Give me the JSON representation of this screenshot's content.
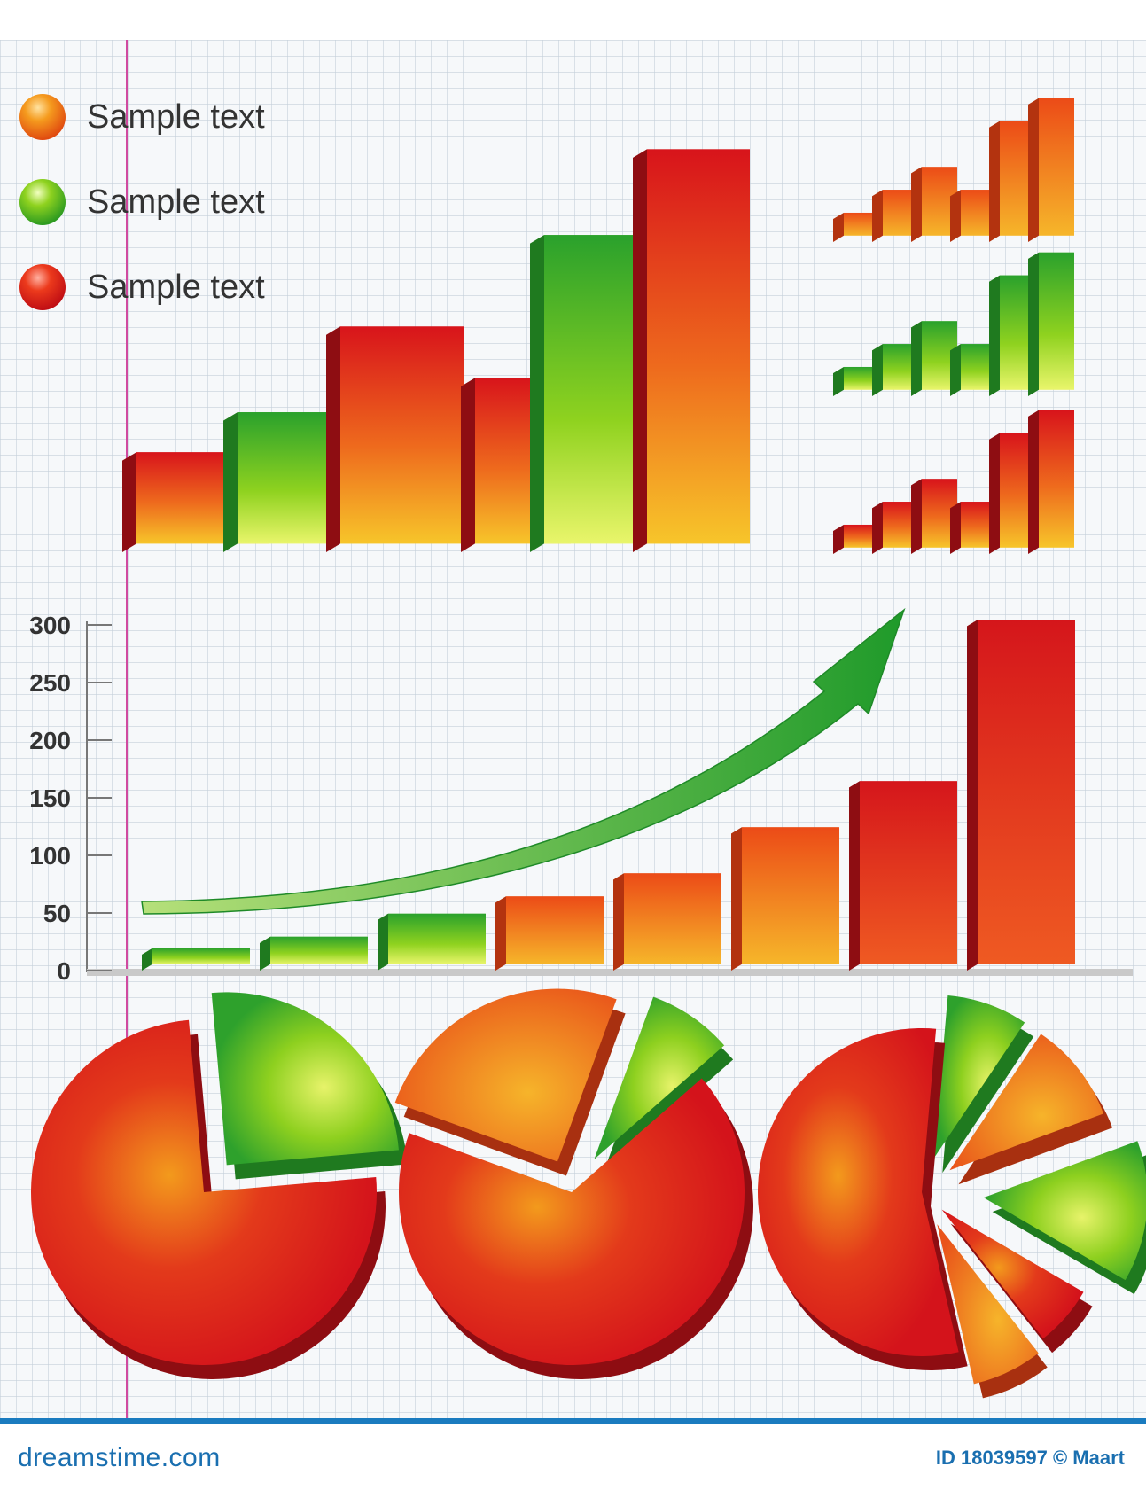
{
  "legend": {
    "items": [
      {
        "label": "Sample text",
        "color": "#f07a10"
      },
      {
        "label": "Sample text",
        "color": "#6cc318"
      },
      {
        "label": "Sample text",
        "color": "#e21b17"
      }
    ]
  },
  "colors": {
    "red": "#d5161b",
    "orange": "#f39a1c",
    "green": "#57b82a",
    "grid": "#b9c6d3",
    "margin_line": "#d04aa0"
  },
  "chart_data": [
    {
      "type": "bar",
      "name": "top-3d-bars",
      "values": [
        80,
        115,
        190,
        145,
        270,
        345
      ],
      "colors": [
        "red-orange",
        "green",
        "red-orange",
        "red-orange",
        "green",
        "red-orange"
      ]
    },
    {
      "type": "bar",
      "name": "mini-bars-orange",
      "values": [
        1,
        2,
        3,
        2,
        5,
        6
      ]
    },
    {
      "type": "bar",
      "name": "mini-bars-green",
      "values": [
        1,
        2,
        3,
        2,
        5,
        6
      ]
    },
    {
      "type": "bar",
      "name": "mini-bars-red",
      "values": [
        1,
        2,
        3,
        2,
        5,
        6
      ]
    },
    {
      "type": "bar",
      "name": "growth-bars",
      "ylim": [
        0,
        300
      ],
      "yticks": [
        "300",
        "250",
        "200",
        "150",
        "100",
        "50",
        "0"
      ],
      "ytick_values": [
        300,
        250,
        200,
        150,
        100,
        50,
        0
      ],
      "values": [
        20,
        30,
        50,
        65,
        85,
        125,
        165,
        305
      ],
      "colors": [
        "green",
        "green",
        "green",
        "orange",
        "orange",
        "orange",
        "red",
        "red"
      ],
      "trend_arrow": "rising"
    },
    {
      "type": "pie",
      "name": "pie-1",
      "values": [
        25,
        75
      ],
      "colors": [
        "green",
        "red"
      ]
    },
    {
      "type": "pie",
      "name": "pie-2",
      "values": [
        25,
        8,
        67
      ],
      "colors": [
        "orange",
        "green",
        "red"
      ]
    },
    {
      "type": "pie",
      "name": "pie-3",
      "values": [
        8,
        10,
        14,
        6,
        7,
        55
      ],
      "colors": [
        "green",
        "orange",
        "green",
        "red",
        "orange",
        "red"
      ]
    }
  ],
  "footer": {
    "brand": "dreamstime.com",
    "credit": "ID 18039597 © Maart"
  }
}
